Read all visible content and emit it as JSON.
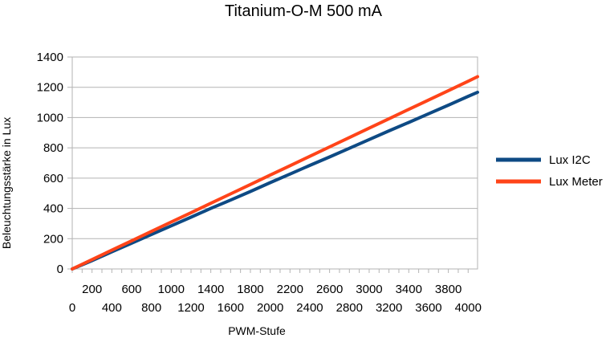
{
  "chart_data": {
    "type": "line",
    "title": "Titanium-O-M 500 mA",
    "xlabel": "PWM-Stufe",
    "ylabel": "Beleuchtungsstärke in Lux",
    "xlim": [
      0,
      4095
    ],
    "ylim": [
      0,
      1400
    ],
    "y_ticks": [
      "0",
      "200",
      "400",
      "600",
      "800",
      "1000",
      "1200",
      "1400"
    ],
    "x_ticks_top_row": [
      "200",
      "600",
      "1000",
      "1400",
      "1800",
      "2200",
      "2600",
      "3000",
      "3400",
      "3800"
    ],
    "x_ticks_bottom_row": [
      "0",
      "400",
      "800",
      "1200",
      "1600",
      "2000",
      "2400",
      "2800",
      "3200",
      "3600",
      "4000"
    ],
    "grid": "horizontal",
    "legend_position": "right",
    "x": [
      0,
      200,
      400,
      600,
      800,
      1000,
      1200,
      1400,
      1600,
      1800,
      2000,
      2200,
      2400,
      2600,
      2800,
      3000,
      3200,
      3400,
      3600,
      3800,
      4000,
      4095
    ],
    "series": [
      {
        "name": "Lux I2C",
        "color": "#0e4a84",
        "values": [
          0,
          55,
          113,
          170,
          228,
          285,
          342,
          400,
          455,
          512,
          570,
          627,
          684,
          740,
          797,
          855,
          912,
          968,
          1025,
          1082,
          1140,
          1167
        ]
      },
      {
        "name": "Lux Meter",
        "color": "#ff4419",
        "values": [
          0,
          62,
          124,
          186,
          248,
          310,
          372,
          434,
          496,
          558,
          620,
          682,
          744,
          806,
          868,
          930,
          992,
          1054,
          1116,
          1178,
          1240,
          1270
        ]
      }
    ]
  }
}
